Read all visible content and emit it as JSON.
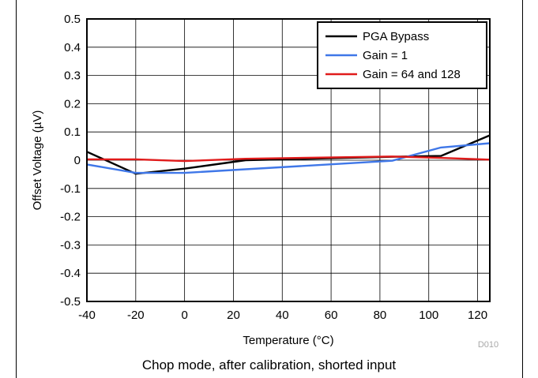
{
  "chart_data": {
    "type": "line",
    "xlabel": "Temperature (°C)",
    "ylabel": "Offset Voltage (µV)",
    "xlim": [
      -40,
      125
    ],
    "ylim": [
      -0.5,
      0.5
    ],
    "x_ticks": [
      -40,
      -20,
      0,
      20,
      40,
      60,
      80,
      100,
      120
    ],
    "y_ticks": [
      -0.5,
      -0.4,
      -0.3,
      -0.2,
      -0.1,
      0,
      0.1,
      0.2,
      0.3,
      0.4,
      0.5
    ],
    "y_tick_labels": [
      "-0.5",
      "-0.4",
      "-0.3",
      "-0.2",
      "-0.1",
      "0",
      "0.1",
      "0.2",
      "0.3",
      "0.4",
      "0.5"
    ],
    "x_tick_labels": [
      "-40",
      "-20",
      "0",
      "20",
      "40",
      "60",
      "80",
      "100",
      "120"
    ],
    "grid": true,
    "legend_position": "top-right",
    "series": [
      {
        "name": "PGA Bypass",
        "color": "#000000",
        "points": [
          [
            -40,
            0.03
          ],
          [
            -20,
            -0.048
          ],
          [
            0,
            -0.03
          ],
          [
            25,
            0.0
          ],
          [
            85,
            0.012
          ],
          [
            105,
            0.015
          ],
          [
            125,
            0.088
          ]
        ]
      },
      {
        "name": "Gain = 1",
        "color": "#3f77e8",
        "points": [
          [
            -40,
            -0.015
          ],
          [
            -20,
            -0.045
          ],
          [
            0,
            -0.045
          ],
          [
            25,
            -0.032
          ],
          [
            85,
            -0.002
          ],
          [
            105,
            0.045
          ],
          [
            125,
            0.06
          ]
        ]
      },
      {
        "name": "Gain = 64 and 128",
        "color": "#e01b1b",
        "points": [
          [
            -40,
            0.003
          ],
          [
            -20,
            0.003
          ],
          [
            0,
            -0.003
          ],
          [
            25,
            0.005
          ],
          [
            85,
            0.013
          ],
          [
            105,
            0.008
          ],
          [
            125,
            0.002
          ]
        ]
      }
    ]
  },
  "watermark": "D010",
  "caption": "Chop mode, after calibration, shorted input"
}
